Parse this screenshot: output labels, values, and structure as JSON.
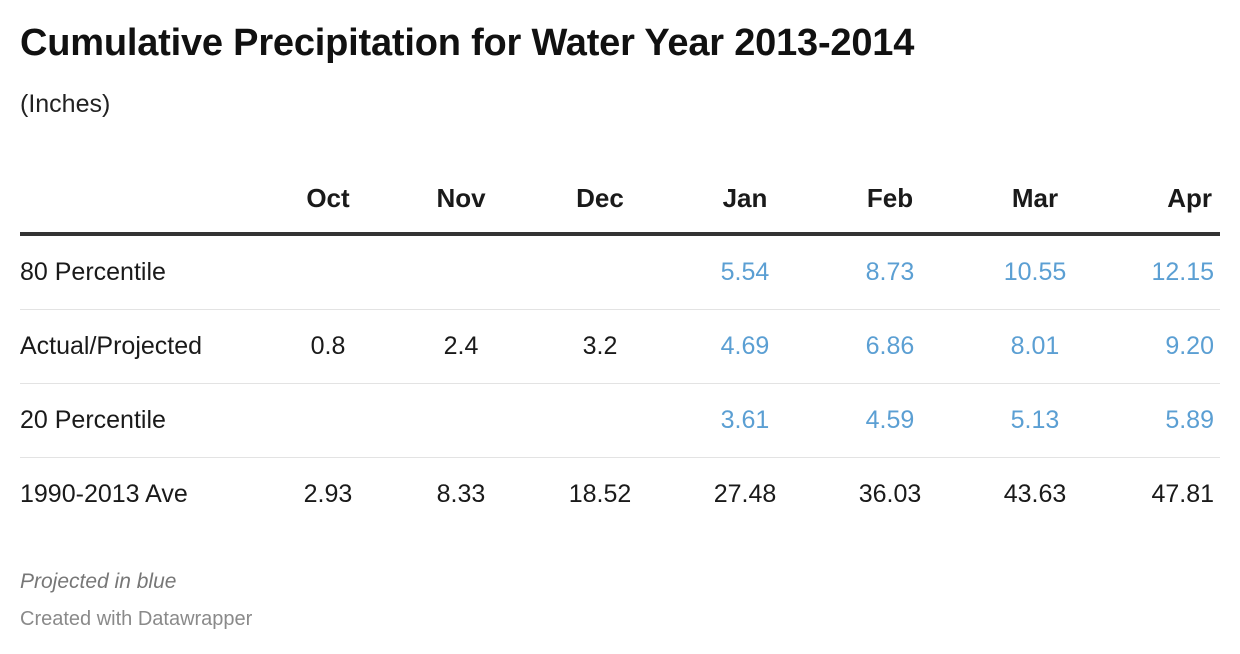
{
  "title": "Cumulative Precipitation for Water Year 2013-2014",
  "subtitle": "(Inches)",
  "columns": [
    "Oct",
    "Nov",
    "Dec",
    "Jan",
    "Feb",
    "Mar",
    "Apr"
  ],
  "rows": [
    {
      "label": "80 Percentile",
      "cells": [
        {
          "value": "",
          "projected": false
        },
        {
          "value": "",
          "projected": false
        },
        {
          "value": "",
          "projected": false
        },
        {
          "value": "5.54",
          "projected": true
        },
        {
          "value": "8.73",
          "projected": true
        },
        {
          "value": "10.55",
          "projected": true
        },
        {
          "value": "12.15",
          "projected": true
        }
      ]
    },
    {
      "label": "Actual/Projected",
      "cells": [
        {
          "value": "0.8",
          "projected": false
        },
        {
          "value": "2.4",
          "projected": false
        },
        {
          "value": "3.2",
          "projected": false
        },
        {
          "value": "4.69",
          "projected": true
        },
        {
          "value": "6.86",
          "projected": true
        },
        {
          "value": "8.01",
          "projected": true
        },
        {
          "value": "9.20",
          "projected": true
        }
      ]
    },
    {
      "label": "20 Percentile",
      "cells": [
        {
          "value": "",
          "projected": false
        },
        {
          "value": "",
          "projected": false
        },
        {
          "value": "",
          "projected": false
        },
        {
          "value": "3.61",
          "projected": true
        },
        {
          "value": "4.59",
          "projected": true
        },
        {
          "value": "5.13",
          "projected": true
        },
        {
          "value": "5.89",
          "projected": true
        }
      ]
    },
    {
      "label": "1990-2013 Ave",
      "cells": [
        {
          "value": "2.93",
          "projected": false
        },
        {
          "value": "8.33",
          "projected": false
        },
        {
          "value": "18.52",
          "projected": false
        },
        {
          "value": "27.48",
          "projected": false
        },
        {
          "value": "36.03",
          "projected": false
        },
        {
          "value": "43.63",
          "projected": false
        },
        {
          "value": "47.81",
          "projected": false
        }
      ]
    }
  ],
  "note": "Projected in blue",
  "credit": "Created with Datawrapper",
  "colors": {
    "projected": "#5b9fd3",
    "text": "#1a1a1a",
    "note": "#777777"
  },
  "chart_data": {
    "type": "table",
    "title": "Cumulative Precipitation for Water Year 2013-2014",
    "subtitle": "(Inches)",
    "categories": [
      "Oct",
      "Nov",
      "Dec",
      "Jan",
      "Feb",
      "Mar",
      "Apr"
    ],
    "series": [
      {
        "name": "80 Percentile",
        "values": [
          null,
          null,
          null,
          5.54,
          8.73,
          10.55,
          12.15
        ]
      },
      {
        "name": "Actual/Projected",
        "values": [
          0.8,
          2.4,
          3.2,
          4.69,
          6.86,
          8.01,
          9.2
        ]
      },
      {
        "name": "20 Percentile",
        "values": [
          null,
          null,
          null,
          3.61,
          4.59,
          5.13,
          5.89
        ]
      },
      {
        "name": "1990-2013 Ave",
        "values": [
          2.93,
          8.33,
          18.52,
          27.48,
          36.03,
          43.63,
          47.81
        ]
      }
    ]
  }
}
